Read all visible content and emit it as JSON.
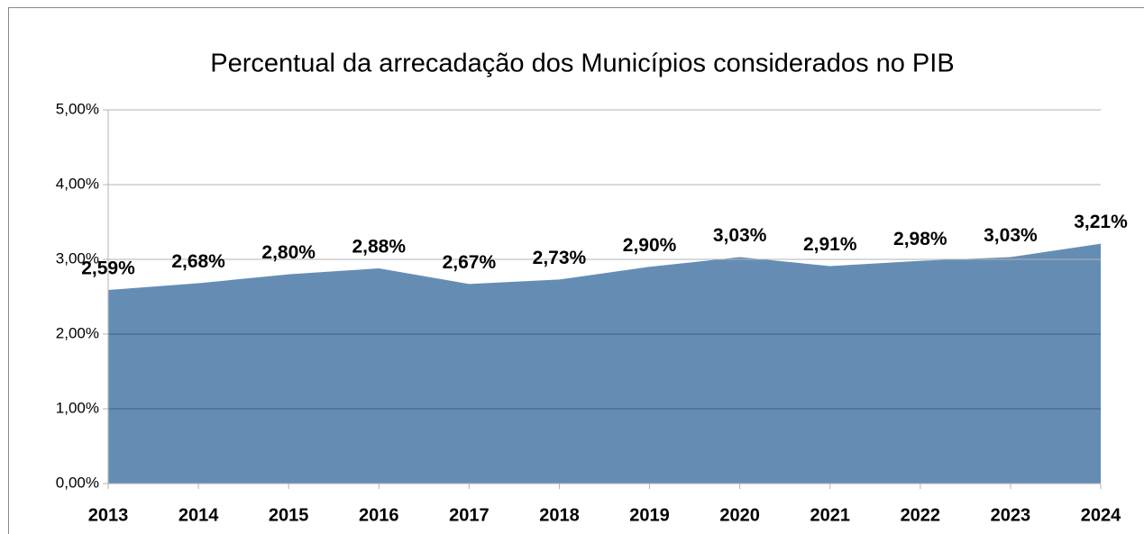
{
  "chart_data": {
    "type": "area",
    "title": "Percentual da arrecadação dos Municípios considerados no PIB",
    "categories": [
      "2013",
      "2014",
      "2015",
      "2016",
      "2017",
      "2018",
      "2019",
      "2020",
      "2021",
      "2022",
      "2023",
      "2024"
    ],
    "values": [
      2.59,
      2.68,
      2.8,
      2.88,
      2.67,
      2.73,
      2.9,
      3.03,
      2.91,
      2.98,
      3.03,
      3.21
    ],
    "value_labels": [
      "2,59%",
      "2,68%",
      "2,80%",
      "2,88%",
      "2,67%",
      "2,73%",
      "2,90%",
      "3,03%",
      "2,91%",
      "2,98%",
      "3,03%",
      "3,21%"
    ],
    "color": "#658db4",
    "ylim": [
      0,
      5
    ],
    "yticks": [
      {
        "value": 0,
        "label": "0,00%"
      },
      {
        "value": 1,
        "label": "1,00%"
      },
      {
        "value": 2,
        "label": "2,00%"
      },
      {
        "value": 3,
        "label": "3,00%"
      },
      {
        "value": 4,
        "label": "4,00%"
      },
      {
        "value": 5,
        "label": "5,00%"
      }
    ],
    "grid": true
  }
}
